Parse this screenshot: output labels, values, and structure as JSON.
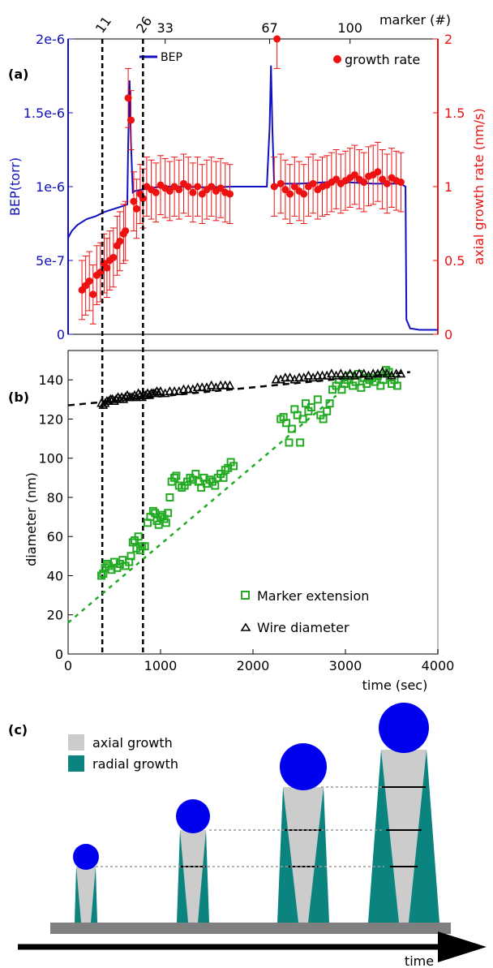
{
  "colors": {
    "bep": "#1010c0",
    "growth": "#ee1111",
    "marker_ext": "#22aa22",
    "wire": "#000000",
    "axial": "#cccccc",
    "radial": "#0b8480",
    "droplet": "#0000ee",
    "substrate": "#7f7f7f"
  },
  "chart_data": [
    {
      "panel": "(a)",
      "type": "line",
      "xlim": [
        0,
        4000
      ],
      "y_left_label": "BEP(torr)",
      "y_left_ticks": [
        "0",
        "5e-7",
        "1e-6",
        "1.5e-6",
        "2e-6"
      ],
      "y_left_range": [
        0,
        2e-06
      ],
      "y_right_label": "axial growth rate (nm/s)",
      "y_right_ticks": [
        "0",
        "0.5",
        "1",
        "1.5",
        "2"
      ],
      "y_right_range": [
        0,
        2
      ],
      "top_axis_label": "marker (#)",
      "top_ticks": [
        {
          "label": "11",
          "x": 370
        },
        {
          "label": "26",
          "x": 810
        },
        {
          "label": "33",
          "x": 1050
        },
        {
          "label": "67",
          "x": 2180
        },
        {
          "label": "100",
          "x": 3050
        }
      ],
      "vlines_x": [
        370,
        810
      ],
      "legend": [
        {
          "label": "BEP",
          "marker": "line"
        },
        {
          "label": "growth rate",
          "marker": "dot"
        }
      ],
      "bep_series": {
        "name": "BEP",
        "x": [
          0,
          5,
          40,
          100,
          200,
          300,
          400,
          500,
          600,
          640,
          650,
          665,
          680,
          700,
          720,
          800,
          1000,
          1200,
          1500,
          1800,
          2000,
          2150,
          2180,
          2195,
          2210,
          2230,
          2260,
          2300,
          2500,
          2800,
          3000,
          3300,
          3500,
          3600,
          3650,
          3660,
          3700,
          3800,
          4000
        ],
        "y": [
          6.5e-07,
          6.6e-07,
          7e-07,
          7.4e-07,
          7.8e-07,
          8e-07,
          8.3e-07,
          8.5e-07,
          8.7e-07,
          8.8e-07,
          1.3e-06,
          1.72e-06,
          1.3e-06,
          9.6e-07,
          9.7e-07,
          9.8e-07,
          1e-06,
          1e-06,
          9.95e-07,
          1e-06,
          1e-06,
          1e-06,
          1.4e-06,
          1.82e-06,
          1.4e-06,
          1e-06,
          1e-06,
          1.02e-06,
          1.02e-06,
          1.03e-06,
          1.03e-06,
          1.02e-06,
          1.02e-06,
          1.02e-06,
          1e-06,
          1e-07,
          4e-08,
          3e-08,
          3e-08
        ]
      },
      "growth_series": {
        "name": "growth rate",
        "x": [
          150,
          190,
          230,
          270,
          310,
          350,
          390,
          420,
          450,
          490,
          530,
          560,
          600,
          620,
          650,
          680,
          710,
          740,
          780,
          810,
          850,
          900,
          950,
          1000,
          1050,
          1100,
          1150,
          1200,
          1250,
          1300,
          1350,
          1400,
          1450,
          1500,
          1550,
          1600,
          1650,
          1700,
          1750,
          2230,
          2260,
          2300,
          2350,
          2400,
          2450,
          2500,
          2550,
          2600,
          2650,
          2700,
          2750,
          2800,
          2850,
          2900,
          2950,
          3000,
          3050,
          3100,
          3150,
          3200,
          3250,
          3300,
          3350,
          3400,
          3450,
          3500,
          3550,
          3600
        ],
        "y": [
          0.3,
          0.33,
          0.36,
          0.27,
          0.4,
          0.42,
          0.48,
          0.45,
          0.5,
          0.52,
          0.6,
          0.63,
          0.68,
          0.7,
          1.6,
          1.45,
          0.9,
          0.85,
          0.95,
          0.92,
          1.0,
          0.98,
          0.96,
          1.01,
          0.99,
          0.97,
          1.0,
          0.98,
          1.02,
          1.0,
          0.96,
          1.0,
          0.95,
          0.98,
          1.0,
          0.97,
          0.99,
          0.96,
          0.95,
          1.0,
          2.0,
          1.02,
          0.98,
          0.95,
          1.0,
          0.97,
          0.95,
          1.0,
          1.02,
          0.98,
          1.0,
          1.01,
          1.03,
          1.05,
          1.02,
          1.04,
          1.06,
          1.08,
          1.05,
          1.03,
          1.07,
          1.08,
          1.1,
          1.05,
          1.02,
          1.06,
          1.04,
          1.03
        ],
        "err": 0.2
      }
    },
    {
      "panel": "(b)",
      "type": "scatter",
      "xlim": [
        0,
        4000
      ],
      "ylim": [
        0,
        155
      ],
      "xlabel": "time (sec)",
      "ylabel": "diameter (nm)",
      "x_ticks": [
        "0",
        "1000",
        "2000",
        "3000",
        "4000"
      ],
      "y_ticks": [
        "0",
        "20",
        "40",
        "60",
        "80",
        "100",
        "120",
        "140"
      ],
      "vlines_x": [
        370,
        810
      ],
      "legend": [
        {
          "label": "Marker extension",
          "marker": "square"
        },
        {
          "label": "Wire diameter",
          "marker": "triangle"
        }
      ],
      "marker_extension": {
        "name": "Marker extension",
        "x": [
          360,
          380,
          400,
          420,
          440,
          470,
          500,
          530,
          560,
          590,
          620,
          660,
          680,
          700,
          720,
          740,
          760,
          780,
          800,
          830,
          860,
          890,
          920,
          940,
          960,
          980,
          1000,
          1020,
          1040,
          1060,
          1080,
          1100,
          1120,
          1150,
          1170,
          1200,
          1230,
          1260,
          1290,
          1320,
          1350,
          1380,
          1410,
          1440,
          1470,
          1500,
          1530,
          1560,
          1590,
          1620,
          1650,
          1680,
          1700,
          1730,
          1760,
          1790,
          2300,
          2330,
          2360,
          2390,
          2420,
          2450,
          2480,
          2510,
          2540,
          2570,
          2600,
          2630,
          2700,
          2730,
          2760,
          2800,
          2830,
          2860,
          2900,
          2930,
          2960,
          2990,
          3020,
          3050,
          3080,
          3110,
          3140,
          3170,
          3200,
          3230,
          3260,
          3290,
          3320,
          3350,
          3380,
          3410,
          3440,
          3470,
          3500,
          3530,
          3560
        ],
        "y": [
          40,
          41,
          44,
          46,
          45,
          43,
          47,
          44,
          46,
          48,
          45,
          47,
          50,
          57,
          58,
          54,
          60,
          53,
          55,
          55,
          67,
          70,
          73,
          72,
          68,
          66,
          70,
          71,
          69,
          67,
          72,
          80,
          88,
          90,
          91,
          86,
          85,
          86,
          88,
          90,
          89,
          92,
          88,
          85,
          90,
          87,
          89,
          88,
          86,
          90,
          92,
          90,
          94,
          95,
          98,
          96,
          120,
          121,
          118,
          108,
          115,
          125,
          122,
          108,
          120,
          128,
          124,
          126,
          130,
          122,
          120,
          124,
          128,
          135,
          137,
          140,
          135,
          138,
          140,
          142,
          137,
          139,
          143,
          136,
          141,
          138,
          140,
          141,
          139,
          142,
          137,
          140,
          145,
          144,
          138,
          140,
          137
        ],
        "fit": {
          "x": [
            0,
            2900
          ],
          "y": [
            16,
            132
          ]
        }
      },
      "wire_diameter": {
        "name": "Wire diameter",
        "x": [
          360,
          380,
          400,
          420,
          440,
          460,
          480,
          500,
          520,
          540,
          560,
          580,
          600,
          620,
          640,
          660,
          680,
          700,
          720,
          740,
          760,
          780,
          800,
          820,
          840,
          860,
          880,
          900,
          920,
          940,
          960,
          980,
          1000,
          1050,
          1100,
          1150,
          1200,
          1250,
          1300,
          1350,
          1400,
          1450,
          1500,
          1550,
          1600,
          1650,
          1700,
          1750,
          2250,
          2300,
          2350,
          2400,
          2450,
          2500,
          2550,
          2600,
          2650,
          2700,
          2750,
          2800,
          2850,
          2900,
          2950,
          3000,
          3050,
          3100,
          3150,
          3200,
          3250,
          3300,
          3350,
          3400,
          3450,
          3500,
          3550,
          3600
        ],
        "y": [
          128,
          127,
          128,
          129,
          129,
          130,
          130,
          129,
          130,
          131,
          130,
          131,
          130,
          131,
          132,
          131,
          131,
          131,
          132,
          131,
          133,
          132,
          131,
          132,
          132,
          133,
          132,
          133,
          133,
          133,
          134,
          133,
          134,
          133,
          134,
          134,
          134,
          135,
          135,
          135,
          136,
          136,
          136,
          137,
          136,
          137,
          137,
          137,
          140,
          140,
          141,
          141,
          140,
          141,
          141,
          142,
          141,
          142,
          142,
          142,
          143,
          142,
          143,
          142,
          143,
          142,
          143,
          143,
          142,
          143,
          143,
          144,
          143,
          142,
          143,
          143
        ],
        "fit": {
          "x": [
            0,
            3700
          ],
          "y": [
            127,
            144
          ]
        }
      }
    },
    {
      "panel": "(c)",
      "type": "diagram",
      "legend": [
        {
          "label": "axial growth",
          "swatch": "axial"
        },
        {
          "label": "radial growth",
          "swatch": "radial"
        }
      ],
      "time_label": "time"
    }
  ]
}
